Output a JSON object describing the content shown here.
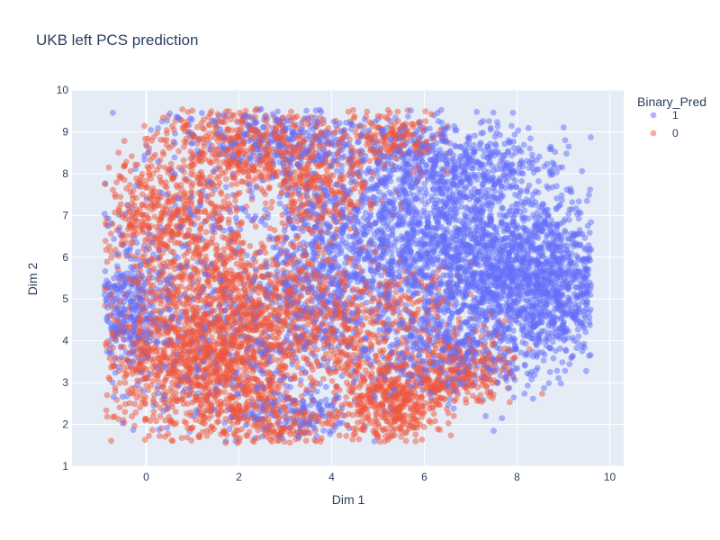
{
  "chart_data": {
    "type": "scatter",
    "title": "UKB left PCS prediction",
    "xlabel": "Dim 1",
    "ylabel": "Dim 2",
    "xlim": [
      -1.6,
      10.3
    ],
    "ylim": [
      1,
      10
    ],
    "x_ticks": [
      0,
      2,
      4,
      6,
      8,
      10
    ],
    "y_ticks": [
      1,
      2,
      3,
      4,
      5,
      6,
      7,
      8,
      9,
      10
    ],
    "grid": true,
    "legend": {
      "title": "Binary_Pred",
      "placement": "top-right"
    },
    "series": [
      {
        "name": "1",
        "color": "#636efa",
        "clusters": [
          {
            "center": [
              7.5,
              5.8
            ],
            "spread": [
              1.25,
              1.0
            ],
            "count": 1700
          },
          {
            "center": [
              5.2,
              6.8
            ],
            "spread": [
              1.0,
              1.1
            ],
            "count": 750
          },
          {
            "center": [
              6.8,
              8.2
            ],
            "spread": [
              1.1,
              0.5
            ],
            "count": 450
          },
          {
            "center": [
              8.8,
              5.0
            ],
            "spread": [
              0.6,
              0.9
            ],
            "count": 420
          },
          {
            "center": [
              6.5,
              3.7
            ],
            "spread": [
              0.9,
              0.6
            ],
            "count": 350
          },
          {
            "center": [
              -0.4,
              4.7
            ],
            "spread": [
              0.45,
              0.7
            ],
            "count": 330
          },
          {
            "center": [
              3.0,
              8.8
            ],
            "spread": [
              1.1,
              0.4
            ],
            "count": 300
          },
          {
            "center": [
              3.8,
              5.4
            ],
            "spread": [
              0.6,
              1.2
            ],
            "count": 300
          },
          {
            "center": [
              1.5,
              6.0
            ],
            "spread": [
              1.5,
              1.8
            ],
            "count": 350
          },
          {
            "center": [
              2.3,
              4.0
            ],
            "spread": [
              1.4,
              1.2
            ],
            "count": 260
          },
          {
            "center": [
              3.0,
              2.2
            ],
            "spread": [
              0.6,
              0.35
            ],
            "count": 140
          }
        ]
      },
      {
        "name": "0",
        "color": "#ef553b",
        "clusters": [
          {
            "center": [
              1.2,
              3.5
            ],
            "spread": [
              1.2,
              0.9
            ],
            "count": 1300
          },
          {
            "center": [
              2.2,
              5.0
            ],
            "spread": [
              1.1,
              0.8
            ],
            "count": 650
          },
          {
            "center": [
              0.5,
              6.8
            ],
            "spread": [
              0.75,
              0.9
            ],
            "count": 550
          },
          {
            "center": [
              2.2,
              8.6
            ],
            "spread": [
              1.0,
              0.6
            ],
            "count": 550
          },
          {
            "center": [
              5.3,
              2.6
            ],
            "spread": [
              0.55,
              0.55
            ],
            "count": 500
          },
          {
            "center": [
              3.8,
              7.5
            ],
            "spread": [
              0.6,
              0.7
            ],
            "count": 280
          },
          {
            "center": [
              6.8,
              3.3
            ],
            "spread": [
              0.6,
              0.45
            ],
            "count": 280
          },
          {
            "center": [
              4.1,
              4.2
            ],
            "spread": [
              0.6,
              0.6
            ],
            "count": 220
          },
          {
            "center": [
              5.3,
              8.9
            ],
            "spread": [
              0.5,
              0.35
            ],
            "count": 180
          },
          {
            "center": [
              2.6,
              2.0
            ],
            "spread": [
              0.9,
              0.35
            ],
            "count": 220
          },
          {
            "center": [
              5.6,
              4.8
            ],
            "spread": [
              0.6,
              0.5
            ],
            "count": 150
          }
        ]
      }
    ]
  }
}
